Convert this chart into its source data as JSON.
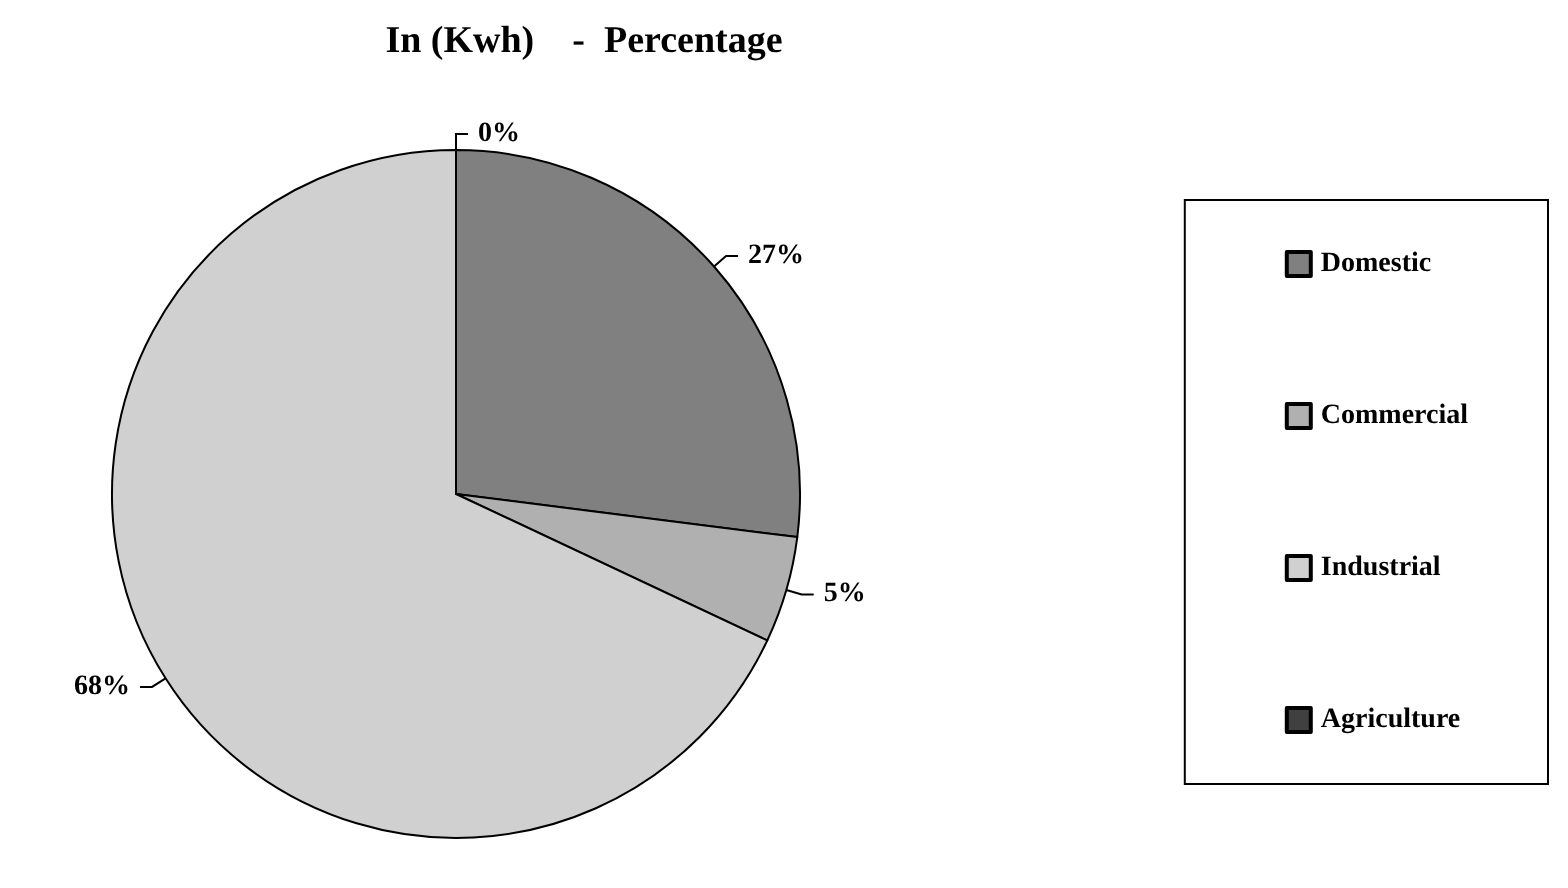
{
  "chart_data": {
    "type": "pie",
    "title": "In (Kwh)    -  Percentage",
    "categories": [
      "Domestic",
      "Commercial",
      "Industrial",
      "Agriculture"
    ],
    "values": [
      27,
      5,
      68,
      0
    ],
    "colors": [
      "#808080",
      "#b0b0b0",
      "#d0d0d0",
      "#404040"
    ],
    "value_labels": [
      "27%",
      "5%",
      "68%",
      "0%"
    ],
    "legend": "right"
  }
}
